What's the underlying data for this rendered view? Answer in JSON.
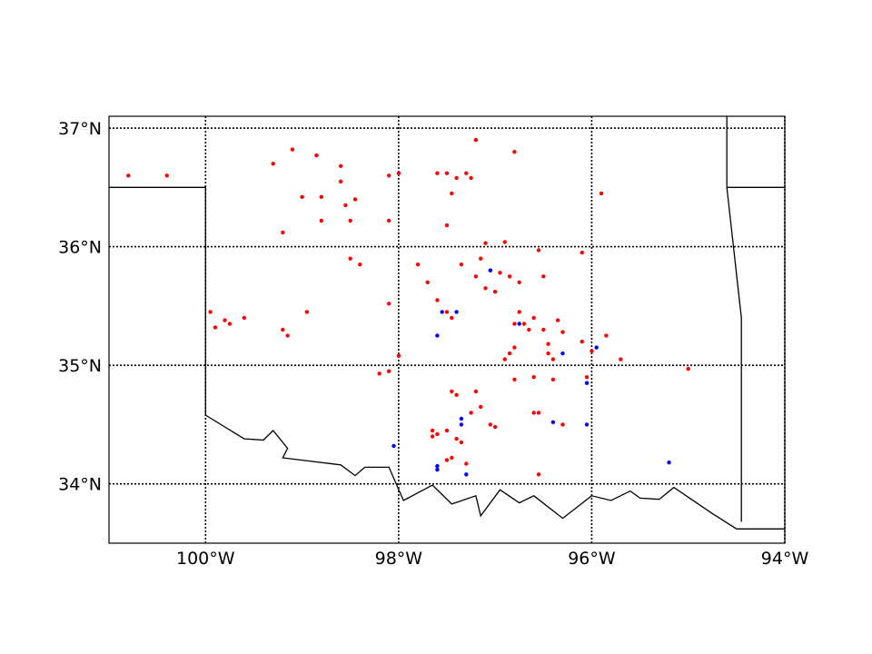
{
  "map": {
    "lon_range": [
      -101.0,
      -94.0
    ],
    "lat_range": [
      33.5,
      37.1
    ],
    "meridians": [
      -100,
      -98,
      -96,
      -94
    ],
    "parallels": [
      34,
      35,
      36,
      37
    ],
    "meridian_labels": [
      "100°W",
      "98°W",
      "96°W",
      "94°W"
    ],
    "parallel_labels": [
      "34°N",
      "35°N",
      "36°N",
      "37°N"
    ],
    "gridline_style": "dotted",
    "colors": {
      "red_points": "#ff0000",
      "blue_points": "#0000ff",
      "border": "#000000"
    }
  },
  "borders": [
    [
      [
        -101.0,
        36.5
      ],
      [
        -100.0,
        36.5
      ],
      [
        -100.0,
        34.58
      ]
    ],
    [
      [
        -100.0,
        34.58
      ],
      [
        -99.6,
        34.38
      ],
      [
        -99.4,
        34.37
      ],
      [
        -99.3,
        34.45
      ],
      [
        -99.15,
        34.3
      ],
      [
        -99.2,
        34.22
      ],
      [
        -98.6,
        34.16
      ],
      [
        -98.45,
        34.07
      ],
      [
        -98.35,
        34.14
      ],
      [
        -98.1,
        34.14
      ],
      [
        -97.95,
        33.86
      ],
      [
        -97.65,
        33.99
      ],
      [
        -97.45,
        33.83
      ],
      [
        -97.2,
        33.9
      ],
      [
        -97.15,
        33.73
      ],
      [
        -96.95,
        33.95
      ],
      [
        -96.75,
        33.84
      ],
      [
        -96.6,
        33.9
      ],
      [
        -96.3,
        33.71
      ],
      [
        -96.0,
        33.9
      ],
      [
        -95.8,
        33.86
      ],
      [
        -95.6,
        33.94
      ],
      [
        -95.5,
        33.88
      ],
      [
        -95.3,
        33.87
      ],
      [
        -95.15,
        33.97
      ],
      [
        -94.75,
        33.75
      ],
      [
        -94.5,
        33.62
      ],
      [
        -94.0,
        33.62
      ]
    ],
    [
      [
        -94.6,
        37.1
      ],
      [
        -94.6,
        36.5
      ],
      [
        -94.45,
        35.4
      ],
      [
        -94.45,
        33.68
      ]
    ],
    [
      [
        -94.6,
        36.5
      ],
      [
        -94.0,
        36.5
      ]
    ]
  ],
  "points": {
    "red": [
      [
        -100.8,
        36.6
      ],
      [
        -100.4,
        36.6
      ],
      [
        -99.3,
        36.7
      ],
      [
        -99.1,
        36.82
      ],
      [
        -98.85,
        36.77
      ],
      [
        -98.6,
        36.68
      ],
      [
        -98.1,
        36.6
      ],
      [
        -98.0,
        36.62
      ],
      [
        -99.0,
        36.42
      ],
      [
        -98.8,
        36.42
      ],
      [
        -98.6,
        36.55
      ],
      [
        -98.45,
        36.4
      ],
      [
        -98.55,
        36.35
      ],
      [
        -98.5,
        36.22
      ],
      [
        -98.8,
        36.22
      ],
      [
        -98.1,
        36.22
      ],
      [
        -99.2,
        36.12
      ],
      [
        -98.5,
        35.9
      ],
      [
        -98.4,
        35.85
      ],
      [
        -97.8,
        35.85
      ],
      [
        -97.6,
        36.62
      ],
      [
        -97.5,
        36.62
      ],
      [
        -97.4,
        36.58
      ],
      [
        -97.25,
        36.58
      ],
      [
        -97.3,
        36.62
      ],
      [
        -97.2,
        36.9
      ],
      [
        -96.8,
        36.8
      ],
      [
        -97.45,
        36.45
      ],
      [
        -97.5,
        36.18
      ],
      [
        -97.1,
        36.03
      ],
      [
        -96.9,
        36.04
      ],
      [
        -96.55,
        35.97
      ],
      [
        -97.7,
        35.7
      ],
      [
        -97.6,
        35.55
      ],
      [
        -97.35,
        35.85
      ],
      [
        -97.15,
        35.9
      ],
      [
        -97.05,
        35.8
      ],
      [
        -96.95,
        35.78
      ],
      [
        -96.85,
        35.75
      ],
      [
        -97.2,
        35.75
      ],
      [
        -97.1,
        35.65
      ],
      [
        -97.0,
        35.62
      ],
      [
        -96.75,
        35.7
      ],
      [
        -96.5,
        35.75
      ],
      [
        -96.1,
        35.95
      ],
      [
        -95.9,
        36.45
      ],
      [
        -99.95,
        35.45
      ],
      [
        -99.8,
        35.38
      ],
      [
        -99.75,
        35.35
      ],
      [
        -99.6,
        35.4
      ],
      [
        -99.9,
        35.32
      ],
      [
        -98.95,
        35.45
      ],
      [
        -99.2,
        35.3
      ],
      [
        -99.15,
        35.25
      ],
      [
        -98.1,
        35.52
      ],
      [
        -97.5,
        35.45
      ],
      [
        -97.45,
        35.4
      ],
      [
        -96.8,
        35.35
      ],
      [
        -96.7,
        35.35
      ],
      [
        -96.65,
        35.3
      ],
      [
        -96.6,
        35.4
      ],
      [
        -96.75,
        35.45
      ],
      [
        -96.5,
        35.3
      ],
      [
        -96.45,
        35.18
      ],
      [
        -96.35,
        35.38
      ],
      [
        -96.3,
        35.28
      ],
      [
        -96.1,
        35.2
      ],
      [
        -96.0,
        35.12
      ],
      [
        -95.85,
        35.25
      ],
      [
        -95.7,
        35.05
      ],
      [
        -96.8,
        35.15
      ],
      [
        -96.85,
        35.1
      ],
      [
        -96.9,
        35.05
      ],
      [
        -96.45,
        35.1
      ],
      [
        -96.4,
        35.05
      ],
      [
        -95.0,
        34.97
      ],
      [
        -98.0,
        35.08
      ],
      [
        -98.1,
        34.95
      ],
      [
        -98.2,
        34.93
      ],
      [
        -96.8,
        34.88
      ],
      [
        -96.6,
        34.9
      ],
      [
        -96.4,
        34.88
      ],
      [
        -96.05,
        34.9
      ],
      [
        -97.45,
        34.78
      ],
      [
        -97.4,
        34.75
      ],
      [
        -97.2,
        34.78
      ],
      [
        -97.15,
        34.65
      ],
      [
        -97.25,
        34.6
      ],
      [
        -96.6,
        34.6
      ],
      [
        -96.55,
        34.6
      ],
      [
        -96.3,
        34.5
      ],
      [
        -97.05,
        34.5
      ],
      [
        -97.0,
        34.48
      ],
      [
        -97.65,
        34.45
      ],
      [
        -97.6,
        34.42
      ],
      [
        -97.5,
        34.45
      ],
      [
        -97.65,
        34.4
      ],
      [
        -97.35,
        34.35
      ],
      [
        -97.3,
        34.17
      ],
      [
        -97.5,
        34.2
      ],
      [
        -97.45,
        34.22
      ],
      [
        -97.4,
        34.38
      ],
      [
        -96.55,
        34.08
      ]
    ],
    "blue": [
      [
        -97.05,
        35.8
      ],
      [
        -97.55,
        35.45
      ],
      [
        -97.4,
        35.45
      ],
      [
        -97.6,
        35.25
      ],
      [
        -96.75,
        35.35
      ],
      [
        -96.3,
        35.1
      ],
      [
        -95.95,
        35.15
      ],
      [
        -96.05,
        34.85
      ],
      [
        -97.35,
        34.55
      ],
      [
        -97.35,
        34.5
      ],
      [
        -96.4,
        34.52
      ],
      [
        -96.05,
        34.5
      ],
      [
        -98.05,
        34.32
      ],
      [
        -97.6,
        34.15
      ],
      [
        -97.6,
        34.12
      ],
      [
        -97.3,
        34.08
      ],
      [
        -95.2,
        34.18
      ]
    ]
  }
}
